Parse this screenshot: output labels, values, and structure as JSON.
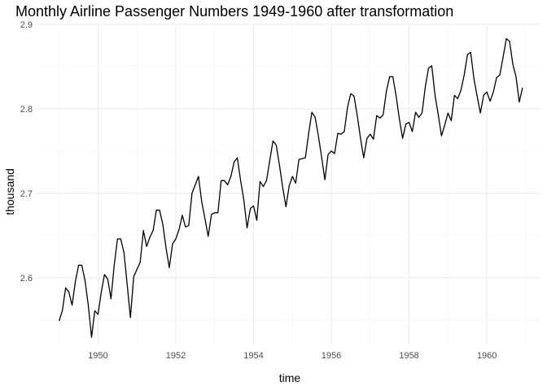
{
  "chart_data": {
    "type": "line",
    "title": "Monthly Airline Passenger Numbers 1949-1960 after transformation",
    "xlabel": "time",
    "ylabel": "thousand",
    "xlim": [
      1948.4,
      1961.4
    ],
    "ylim": [
      2.52,
      2.9
    ],
    "x_ticks": [
      1950,
      1952,
      1954,
      1956,
      1958,
      1960
    ],
    "x_tick_labels": [
      "1950",
      "1952",
      "1954",
      "1956",
      "1958",
      "1960"
    ],
    "y_ticks": [
      2.6,
      2.7,
      2.8,
      2.9
    ],
    "y_tick_labels": [
      "2.6",
      "2.7",
      "2.8",
      "2.9"
    ],
    "grid": true,
    "line_color": "#000000",
    "series": [
      {
        "start": "1949-01",
        "frequency": "monthly",
        "x": [
          1949.0,
          1949.083,
          1949.167,
          1949.25,
          1949.333,
          1949.417,
          1949.5,
          1949.583,
          1949.667,
          1949.75,
          1949.833,
          1949.917,
          1950.0,
          1950.083,
          1950.167,
          1950.25,
          1950.333,
          1950.417,
          1950.5,
          1950.583,
          1950.667,
          1950.75,
          1950.833,
          1950.917,
          1951.0,
          1951.083,
          1951.167,
          1951.25,
          1951.333,
          1951.417,
          1951.5,
          1951.583,
          1951.667,
          1951.75,
          1951.833,
          1951.917,
          1952.0,
          1952.083,
          1952.167,
          1952.25,
          1952.333,
          1952.417,
          1952.5,
          1952.583,
          1952.667,
          1952.75,
          1952.833,
          1952.917,
          1953.0,
          1953.083,
          1953.167,
          1953.25,
          1953.333,
          1953.417,
          1953.5,
          1953.583,
          1953.667,
          1953.75,
          1953.833,
          1953.917,
          1954.0,
          1954.083,
          1954.167,
          1954.25,
          1954.333,
          1954.417,
          1954.5,
          1954.583,
          1954.667,
          1954.75,
          1954.833,
          1954.917,
          1955.0,
          1955.083,
          1955.167,
          1955.25,
          1955.333,
          1955.417,
          1955.5,
          1955.583,
          1955.667,
          1955.75,
          1955.833,
          1955.917,
          1956.0,
          1956.083,
          1956.167,
          1956.25,
          1956.333,
          1956.417,
          1956.5,
          1956.583,
          1956.667,
          1956.75,
          1956.833,
          1956.917,
          1957.0,
          1957.083,
          1957.167,
          1957.25,
          1957.333,
          1957.417,
          1957.5,
          1957.583,
          1957.667,
          1957.75,
          1957.833,
          1957.917,
          1958.0,
          1958.083,
          1958.167,
          1958.25,
          1958.333,
          1958.417,
          1958.5,
          1958.583,
          1958.667,
          1958.75,
          1958.833,
          1958.917,
          1959.0,
          1959.083,
          1959.167,
          1959.25,
          1959.333,
          1959.417,
          1959.5,
          1959.583,
          1959.667,
          1959.75,
          1959.833,
          1959.917,
          1960.0,
          1960.083,
          1960.167,
          1960.25,
          1960.333,
          1960.417,
          1960.5,
          1960.583,
          1960.667,
          1960.75,
          1960.833,
          1960.917
        ],
        "values": [
          2.5489,
          2.5612,
          2.588,
          2.583,
          2.5675,
          2.5953,
          2.6149,
          2.6149,
          2.5963,
          2.5672,
          2.5295,
          2.561,
          2.5566,
          2.583,
          2.6038,
          2.5983,
          2.575,
          2.6149,
          2.646,
          2.646,
          2.6298,
          2.592,
          2.5528,
          2.601,
          2.61,
          2.618,
          2.656,
          2.637,
          2.648,
          2.656,
          2.68,
          2.68,
          2.663,
          2.635,
          2.612,
          2.64,
          2.646,
          2.657,
          2.674,
          2.66,
          2.662,
          2.7,
          2.71,
          2.72,
          2.69,
          2.67,
          2.649,
          2.675,
          2.677,
          2.677,
          2.715,
          2.715,
          2.71,
          2.72,
          2.737,
          2.742,
          2.715,
          2.692,
          2.659,
          2.682,
          2.685,
          2.668,
          2.714,
          2.708,
          2.715,
          2.739,
          2.762,
          2.757,
          2.733,
          2.707,
          2.684,
          2.709,
          2.72,
          2.712,
          2.74,
          2.741,
          2.742,
          2.771,
          2.796,
          2.79,
          2.768,
          2.743,
          2.716,
          2.746,
          2.75,
          2.747,
          2.771,
          2.77,
          2.773,
          2.802,
          2.818,
          2.815,
          2.792,
          2.765,
          2.742,
          2.765,
          2.77,
          2.764,
          2.792,
          2.789,
          2.793,
          2.821,
          2.838,
          2.838,
          2.815,
          2.788,
          2.765,
          2.782,
          2.784,
          2.773,
          2.796,
          2.79,
          2.795,
          2.826,
          2.848,
          2.851,
          2.816,
          2.793,
          2.768,
          2.781,
          2.795,
          2.786,
          2.816,
          2.812,
          2.822,
          2.84,
          2.864,
          2.867,
          2.836,
          2.815,
          2.795,
          2.816,
          2.82,
          2.809,
          2.82,
          2.837,
          2.84,
          2.861,
          2.883,
          2.88,
          2.853,
          2.838,
          2.808,
          2.825
        ]
      }
    ]
  }
}
